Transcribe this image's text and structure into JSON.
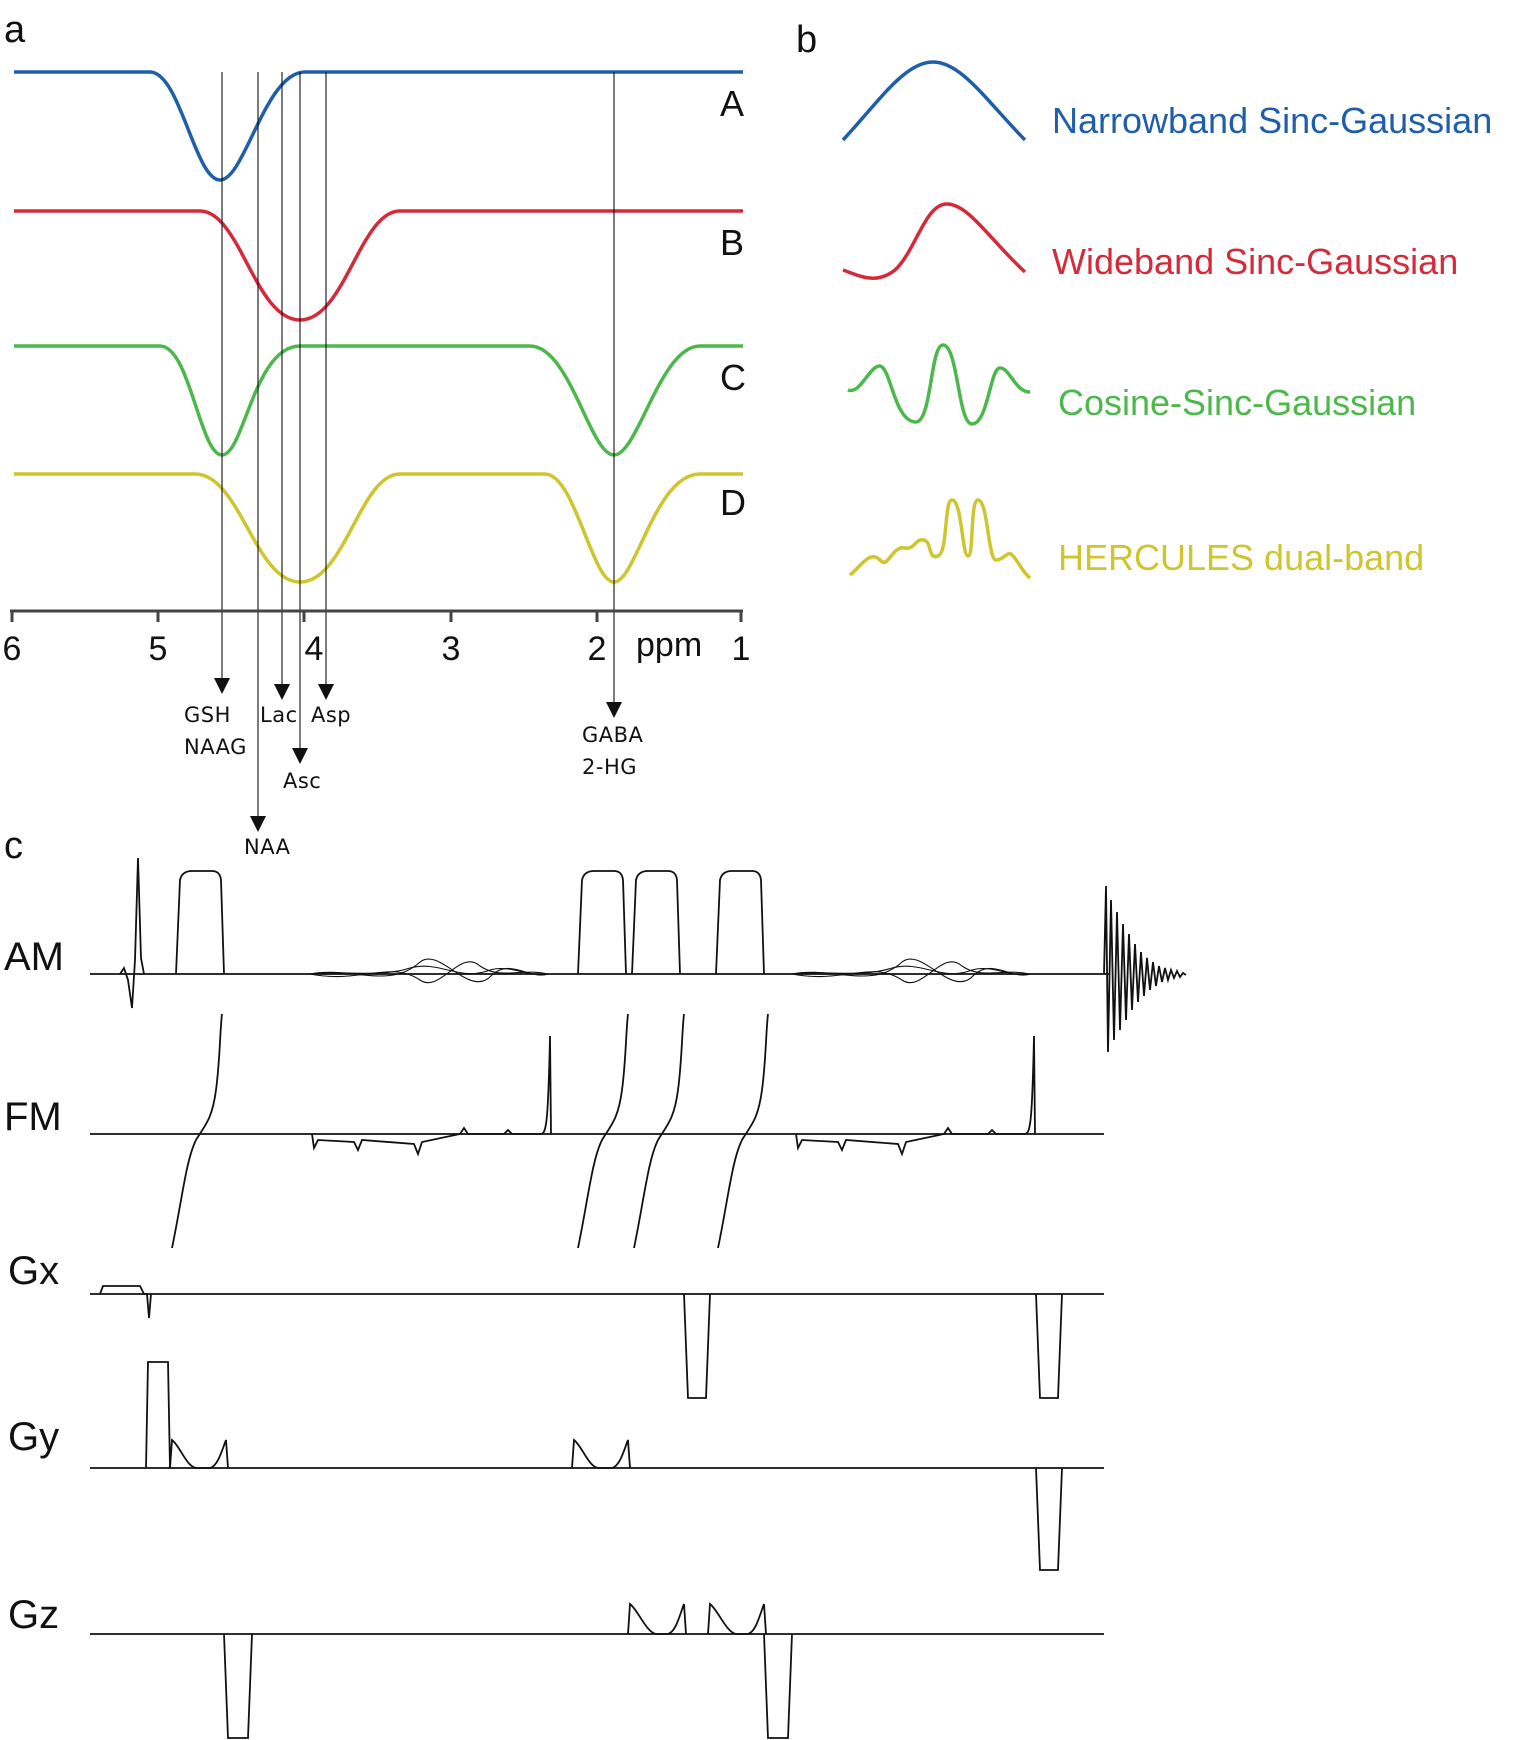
{
  "panels": {
    "a": "a",
    "b": "b",
    "c": "c"
  },
  "colors": {
    "A": "#1f5ea8",
    "B": "#d42a3a",
    "C": "#4cb84c",
    "D": "#cfc52e",
    "ink": "#111111"
  },
  "panel_a": {
    "profiles": [
      {
        "letter": "A",
        "color": "#1f5ea8"
      },
      {
        "letter": "B",
        "color": "#d42a3a"
      },
      {
        "letter": "C",
        "color": "#4cb84c"
      },
      {
        "letter": "D",
        "color": "#cfc52e"
      }
    ],
    "axis": {
      "ticks": [
        "6",
        "5",
        "4",
        "3",
        "2",
        "1"
      ],
      "unit": "ppm"
    },
    "metabolites": [
      {
        "name": "GSH"
      },
      {
        "name": "NAAG"
      },
      {
        "name": "Lac"
      },
      {
        "name": "Asp"
      },
      {
        "name": "Asc"
      },
      {
        "name": "NAA"
      },
      {
        "name": "GABA"
      },
      {
        "name": "2-HG"
      }
    ]
  },
  "panel_b": {
    "legend": [
      {
        "label": "Narrowband Sinc-Gaussian",
        "color": "#1f5ea8",
        "icon": "narrowband-waveform-icon"
      },
      {
        "label": "Wideband Sinc-Gaussian",
        "color": "#d42a3a",
        "icon": "wideband-waveform-icon"
      },
      {
        "label": "Cosine-Sinc-Gaussian",
        "color": "#4cb84c",
        "icon": "cosine-waveform-icon"
      },
      {
        "label": "HERCULES dual-band",
        "color": "#cfc52e",
        "icon": "hercules-waveform-icon"
      }
    ]
  },
  "panel_c": {
    "channels": [
      "AM",
      "FM",
      "Gx",
      "Gy",
      "Gz"
    ]
  }
}
